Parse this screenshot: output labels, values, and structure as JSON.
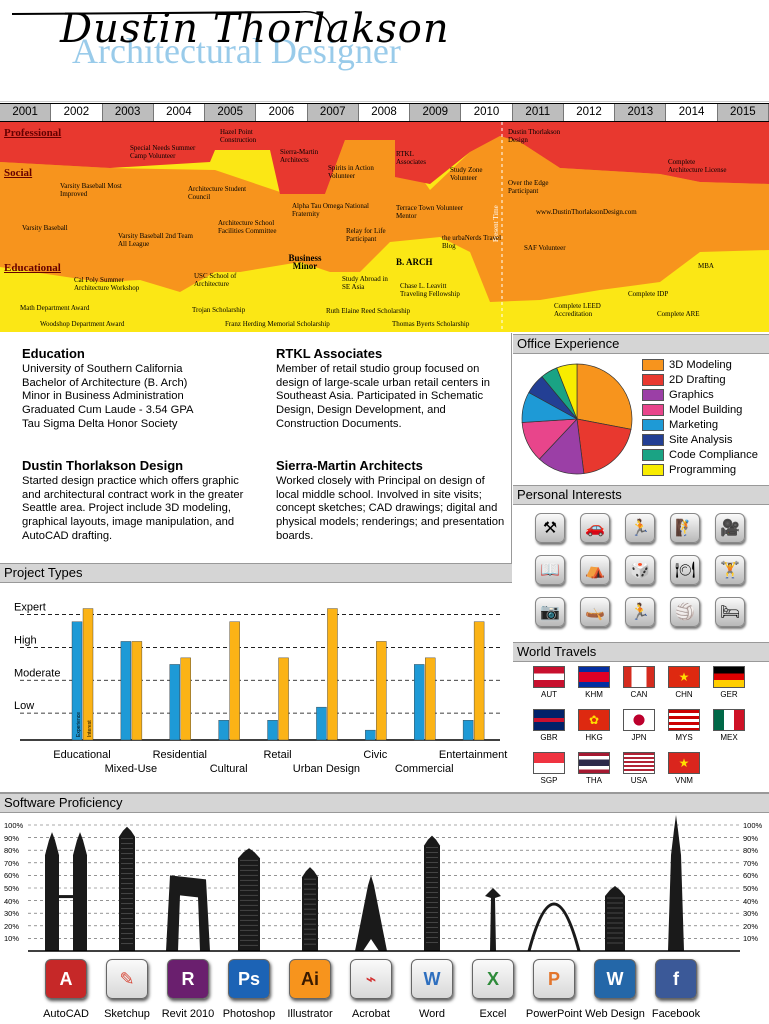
{
  "header": {
    "name": "Dustin Thorlakson",
    "subtitle": "Architectural Designer"
  },
  "timeline": {
    "years": [
      "2001",
      "2002",
      "2003",
      "2004",
      "2005",
      "2006",
      "2007",
      "2008",
      "2009",
      "2010",
      "2011",
      "2012",
      "2013",
      "2014",
      "2015"
    ],
    "categories": {
      "professional": "Professional",
      "social": "Social",
      "educational": "Educational"
    },
    "present_label": "Present Time",
    "events": {
      "special_needs": "Special Needs Summer Camp Volunteer",
      "hazel_point": "Hazel Point Construction",
      "sierra_martin": "Sierra-Martin Architects",
      "spirits": "Spirits in Action Volunteer",
      "rtkl": "RTKL Associates",
      "dtd": "Dustin Thorlakson Design",
      "study_zone": "Study Zone Volunteer",
      "complete_license": "Complete Architecture License",
      "varsity_mi": "Varsity Baseball Most Improved",
      "arch_council": "Architecture Student Council",
      "over_edge": "Over the Edge Participant",
      "alpha_tau": "Alpha Tau Omega National Fraternity",
      "terrace": "Terrace Town Volunteer Mentor",
      "website": "www.DustinThorlaksonDesign.com",
      "varsity": "Varsity Baseball",
      "arch_school": "Architecture School Facilities Committee",
      "relay": "Relay for Life Participant",
      "urbanerds": "the urbaNerds Travel Blog",
      "varsity_2nd": "Varsity Baseball 2nd Team All League",
      "saf": "SAF Volunteer",
      "business_minor": "Business Minor",
      "barch": "B. ARCH",
      "calpoly": "Cal Poly Summer Architecture Workshop",
      "usc": "USC School of Architecture",
      "study_abroad": "Study Abroad in SE Asia",
      "leavitt": "Chase L. Leavitt Traveling Fellowship",
      "mba": "MBA",
      "idp": "Complete IDP",
      "leed": "Complete LEED Accreditation",
      "are": "Complete ARE",
      "math": "Math Department Award",
      "trojan": "Trojan Scholarship",
      "ruth": "Ruth Elaine Reed Scholarship",
      "woodshop": "Woodshop Department Award",
      "herding": "Franz Herding Memorial Scholarship",
      "byerts": "Thomas Byerts Scholarship"
    }
  },
  "education": {
    "title": "Education",
    "lines": [
      "University of Southern California",
      "Bachelor of Architecture (B. Arch)",
      "Minor in Business Administration",
      "Graduated Cum Laude - 3.54 GPA",
      "Tau Sigma Delta Honor Society"
    ]
  },
  "rtkl": {
    "title": "RTKL Associates",
    "text": "Member of retail studio group focused on design of large-scale urban retail centers in Southeast Asia. Participated in Schematic Design, Design Development, and Construction Documents."
  },
  "dtd": {
    "title": "Dustin Thorlakson Design",
    "text": "Started design practice which offers graphic and architectural contract work in the greater Seattle area. Project include 3D modeling, graphical layouts, image manipulation, and AutoCAD drafting."
  },
  "sierra": {
    "title": "Sierra-Martin Architects",
    "text": "Worked closely with Principal on design of local middle school. Involved in site visits; concept sketches; CAD drawings; digital and physical models; renderings; and presentation boards."
  },
  "office": {
    "title": "Office Experience",
    "colors": {
      "3d": "#f7941d",
      "2d": "#e8382f",
      "graphics": "#9b3fa6",
      "model": "#e8458b",
      "marketing": "#1e9ad6",
      "site": "#233f94",
      "code": "#1aa384",
      "programming": "#f8ec00"
    },
    "items": [
      "3D Modeling",
      "2D Drafting",
      "Graphics",
      "Model Building",
      "Marketing",
      "Site Analysis",
      "Code Compliance",
      "Programming"
    ]
  },
  "interests": {
    "title": "Personal Interests",
    "icons": [
      "tools-icon",
      "car-icon",
      "running-icon",
      "climbing-icon",
      "film-camera-icon",
      "book-icon",
      "tent-icon",
      "dice-icon",
      "dining-icon",
      "weightlifting-icon",
      "camera-icon",
      "kayak-icon",
      "sprint-icon",
      "volleyball-icon",
      "bed-icon"
    ]
  },
  "travels": {
    "title": "World Travels",
    "countries": [
      "AUT",
      "KHM",
      "CAN",
      "CHN",
      "GER",
      "GBR",
      "HKG",
      "JPN",
      "MYS",
      "MEX",
      "SGP",
      "THA",
      "USA",
      "VNM"
    ]
  },
  "projects": {
    "title": "Project Types",
    "chart_data": {
      "type": "bar",
      "categories": [
        "Educational",
        "Mixed-Use",
        "Residential",
        "Cultural",
        "Retail",
        "Urban Design",
        "Civic",
        "Commercial",
        "Entertainment"
      ],
      "levels": [
        "Low",
        "Moderate",
        "High",
        "Expert"
      ],
      "series": [
        {
          "name": "Experience",
          "color": "#1e9ad6",
          "values": [
            3.6,
            3.0,
            2.3,
            0.6,
            0.6,
            1.0,
            0.3,
            2.3,
            0.6
          ]
        },
        {
          "name": "Interest",
          "color": "#fbb316",
          "values": [
            4.0,
            3.0,
            2.5,
            3.6,
            2.5,
            4.0,
            3.0,
            2.5,
            3.6
          ]
        }
      ],
      "ylim": [
        0,
        4.2
      ]
    }
  },
  "software": {
    "title": "Software Proficiency",
    "ticks": [
      "100%",
      "90%",
      "80%",
      "70%",
      "60%",
      "50%",
      "40%",
      "30%",
      "20%",
      "10%"
    ],
    "chart_data": {
      "type": "bar",
      "categories": [
        "AutoCAD",
        "Sketchup",
        "Revit 2010",
        "Photoshop",
        "Illustrator",
        "Acrobat",
        "Word",
        "Excel",
        "PowerPoint",
        "Web Design",
        "Facebook"
      ],
      "values": [
        92,
        97,
        60,
        80,
        65,
        60,
        90,
        50,
        35,
        50,
        100
      ],
      "ylim": [
        0,
        100
      ]
    },
    "icon_glyphs": [
      "A",
      "✎",
      "R",
      "Ps",
      "Ai",
      "⌁",
      "W",
      "X",
      "P",
      "W",
      "f"
    ],
    "icon_colors": [
      "#c62828",
      "#d84a3a",
      "#6a1f6e",
      "#1c63b5",
      "#f7941d",
      "#d32f2f",
      "#2e6fbf",
      "#2e8b3a",
      "#e3752c",
      "#2467a8",
      "#3b5998"
    ]
  }
}
